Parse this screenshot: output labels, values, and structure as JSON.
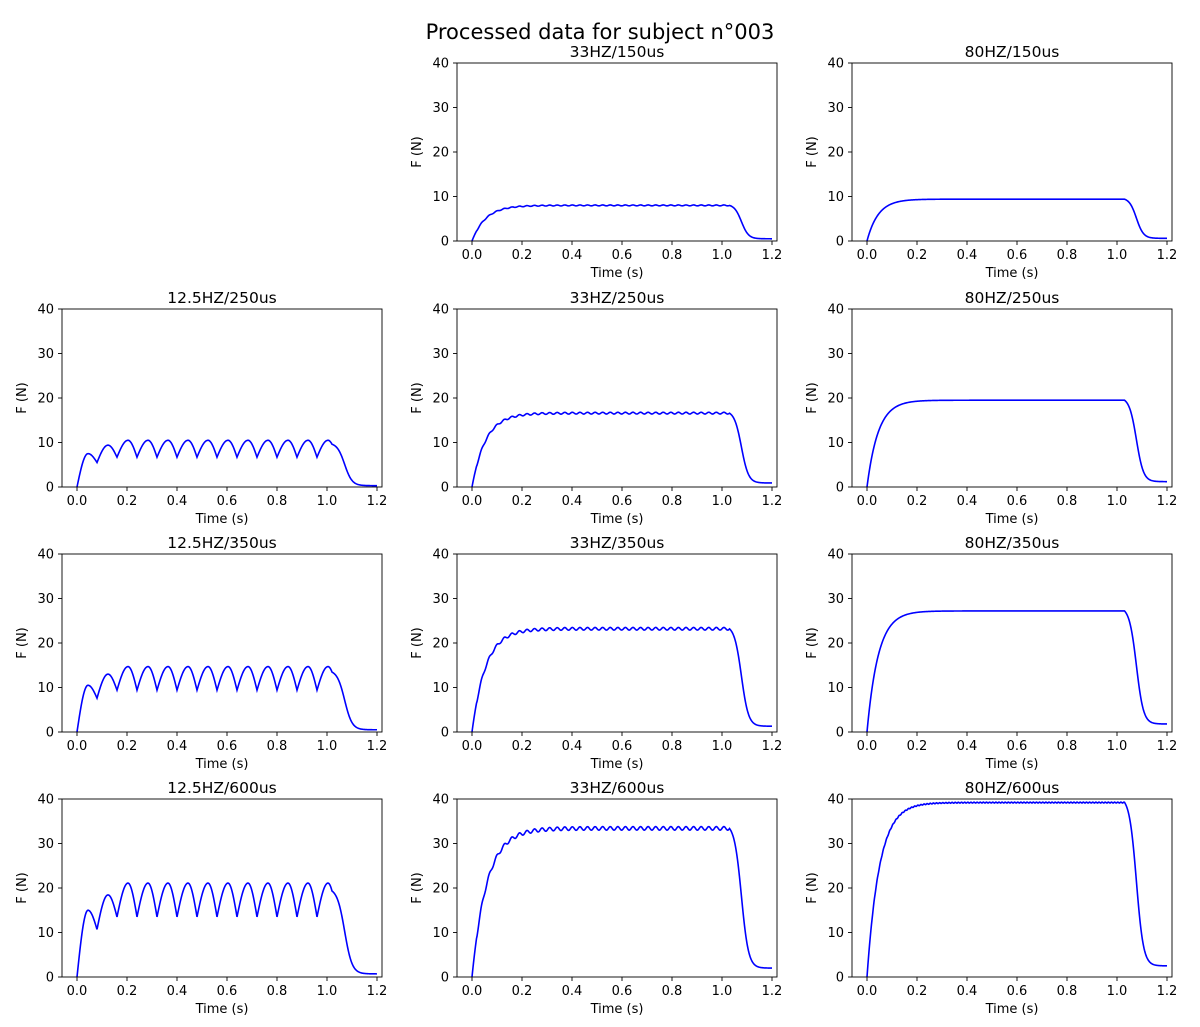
{
  "figure": {
    "title": "Processed data for subject n°003"
  },
  "chart_data": [
    {
      "type": "line",
      "title": "33HZ/150us",
      "xlabel": "Time (s)",
      "ylabel": "F (N)",
      "xlim": [
        -0.06,
        1.22
      ],
      "ylim": [
        0,
        40
      ],
      "xticks": [
        0.0,
        0.2,
        0.4,
        0.6,
        0.8,
        1.0,
        1.2
      ],
      "yticks": [
        0,
        10,
        20,
        30,
        40
      ],
      "grid": false,
      "series": [
        {
          "freq_hz": 33,
          "plateau": 8.0,
          "peak": 8.1,
          "trough": 7.9,
          "tau": 0.055,
          "end": 1.03,
          "final": 0.5,
          "color": "#0000ff"
        }
      ]
    },
    {
      "type": "line",
      "title": "80HZ/150us",
      "xlabel": "Time (s)",
      "ylabel": "F (N)",
      "xlim": [
        -0.06,
        1.22
      ],
      "ylim": [
        0,
        40
      ],
      "xticks": [
        0.0,
        0.2,
        0.4,
        0.6,
        0.8,
        1.0,
        1.2
      ],
      "yticks": [
        0,
        10,
        20,
        30,
        40
      ],
      "grid": false,
      "series": [
        {
          "freq_hz": 80,
          "plateau": 9.4,
          "peak": 9.4,
          "trough": 9.4,
          "tau": 0.045,
          "end": 1.03,
          "final": 0.6,
          "color": "#0000ff"
        }
      ]
    },
    {
      "type": "line",
      "title": "12.5HZ/250us",
      "xlabel": "Time (s)",
      "ylabel": "F (N)",
      "xlim": [
        -0.06,
        1.22
      ],
      "ylim": [
        0,
        40
      ],
      "xticks": [
        0.0,
        0.2,
        0.4,
        0.6,
        0.8,
        1.0,
        1.2
      ],
      "yticks": [
        0,
        10,
        20,
        30,
        40
      ],
      "grid": false,
      "series": [
        {
          "freq_hz": 12.5,
          "first_peak": 7.5,
          "first_trough": 5.5,
          "plateau": 8.5,
          "peak": 10.5,
          "trough": 6.7,
          "end": 1.02,
          "final": 0.3,
          "color": "#0000ff"
        }
      ]
    },
    {
      "type": "line",
      "title": "33HZ/250us",
      "xlabel": "Time (s)",
      "ylabel": "F (N)",
      "xlim": [
        -0.06,
        1.22
      ],
      "ylim": [
        0,
        40
      ],
      "xticks": [
        0.0,
        0.2,
        0.4,
        0.6,
        0.8,
        1.0,
        1.2
      ],
      "yticks": [
        0,
        10,
        20,
        30,
        40
      ],
      "grid": false,
      "series": [
        {
          "freq_hz": 33,
          "plateau": 16.6,
          "peak": 16.8,
          "trough": 16.4,
          "tau": 0.055,
          "end": 1.03,
          "final": 0.9,
          "color": "#0000ff"
        }
      ]
    },
    {
      "type": "line",
      "title": "80HZ/250us",
      "xlabel": "Time (s)",
      "ylabel": "F (N)",
      "xlim": [
        -0.06,
        1.22
      ],
      "ylim": [
        0,
        40
      ],
      "xticks": [
        0.0,
        0.2,
        0.4,
        0.6,
        0.8,
        1.0,
        1.2
      ],
      "yticks": [
        0,
        10,
        20,
        30,
        40
      ],
      "grid": false,
      "series": [
        {
          "freq_hz": 80,
          "plateau": 19.5,
          "peak": 19.5,
          "trough": 19.5,
          "tau": 0.045,
          "end": 1.03,
          "final": 1.2,
          "color": "#0000ff"
        }
      ]
    },
    {
      "type": "line",
      "title": "12.5HZ/350us",
      "xlabel": "Time (s)",
      "ylabel": "F (N)",
      "xlim": [
        -0.06,
        1.22
      ],
      "ylim": [
        0,
        40
      ],
      "xticks": [
        0.0,
        0.2,
        0.4,
        0.6,
        0.8,
        1.0,
        1.2
      ],
      "yticks": [
        0,
        10,
        20,
        30,
        40
      ],
      "grid": false,
      "series": [
        {
          "freq_hz": 12.5,
          "first_peak": 10.5,
          "first_trough": 7.6,
          "plateau": 12.0,
          "peak": 14.7,
          "trough": 9.4,
          "end": 1.02,
          "final": 0.5,
          "color": "#0000ff"
        }
      ]
    },
    {
      "type": "line",
      "title": "33HZ/350us",
      "xlabel": "Time (s)",
      "ylabel": "F (N)",
      "xlim": [
        -0.06,
        1.22
      ],
      "ylim": [
        0,
        40
      ],
      "xticks": [
        0.0,
        0.2,
        0.4,
        0.6,
        0.8,
        1.0,
        1.2
      ],
      "yticks": [
        0,
        10,
        20,
        30,
        40
      ],
      "grid": false,
      "series": [
        {
          "freq_hz": 33,
          "plateau": 23.2,
          "peak": 23.5,
          "trough": 22.9,
          "tau": 0.055,
          "end": 1.03,
          "final": 1.3,
          "color": "#0000ff"
        }
      ]
    },
    {
      "type": "line",
      "title": "80HZ/350us",
      "xlabel": "Time (s)",
      "ylabel": "F (N)",
      "xlim": [
        -0.06,
        1.22
      ],
      "ylim": [
        0,
        40
      ],
      "xticks": [
        0.0,
        0.2,
        0.4,
        0.6,
        0.8,
        1.0,
        1.2
      ],
      "yticks": [
        0,
        10,
        20,
        30,
        40
      ],
      "grid": false,
      "series": [
        {
          "freq_hz": 80,
          "plateau": 27.2,
          "peak": 27.2,
          "trough": 27.2,
          "tau": 0.045,
          "end": 1.03,
          "final": 1.8,
          "color": "#0000ff"
        }
      ]
    },
    {
      "type": "line",
      "title": "12.5HZ/600us",
      "xlabel": "Time (s)",
      "ylabel": "F (N)",
      "xlim": [
        -0.06,
        1.22
      ],
      "ylim": [
        0,
        40
      ],
      "xticks": [
        0.0,
        0.2,
        0.4,
        0.6,
        0.8,
        1.0,
        1.2
      ],
      "yticks": [
        0,
        10,
        20,
        30,
        40
      ],
      "grid": false,
      "series": [
        {
          "freq_hz": 12.5,
          "first_peak": 15.0,
          "first_trough": 10.7,
          "plateau": 17.3,
          "peak": 21.1,
          "trough": 13.5,
          "end": 1.02,
          "final": 0.7,
          "color": "#0000ff"
        }
      ]
    },
    {
      "type": "line",
      "title": "33HZ/600us",
      "xlabel": "Time (s)",
      "ylabel": "F (N)",
      "xlim": [
        -0.06,
        1.22
      ],
      "ylim": [
        0,
        40
      ],
      "xticks": [
        0.0,
        0.2,
        0.4,
        0.6,
        0.8,
        1.0,
        1.2
      ],
      "yticks": [
        0,
        10,
        20,
        30,
        40
      ],
      "grid": false,
      "series": [
        {
          "freq_hz": 33,
          "plateau": 33.4,
          "peak": 33.8,
          "trough": 33.0,
          "tau": 0.06,
          "end": 1.03,
          "final": 2.0,
          "color": "#0000ff"
        }
      ]
    },
    {
      "type": "line",
      "title": "80HZ/600us",
      "xlabel": "Time (s)",
      "ylabel": "F (N)",
      "xlim": [
        -0.06,
        1.22
      ],
      "ylim": [
        0,
        40
      ],
      "xticks": [
        0.0,
        0.2,
        0.4,
        0.6,
        0.8,
        1.0,
        1.2
      ],
      "yticks": [
        0,
        10,
        20,
        30,
        40
      ],
      "grid": false,
      "series": [
        {
          "freq_hz": 80,
          "plateau": 39.2,
          "peak": 39.3,
          "trough": 39.1,
          "tau": 0.05,
          "end": 1.03,
          "final": 2.5,
          "color": "#0000ff"
        }
      ]
    }
  ]
}
